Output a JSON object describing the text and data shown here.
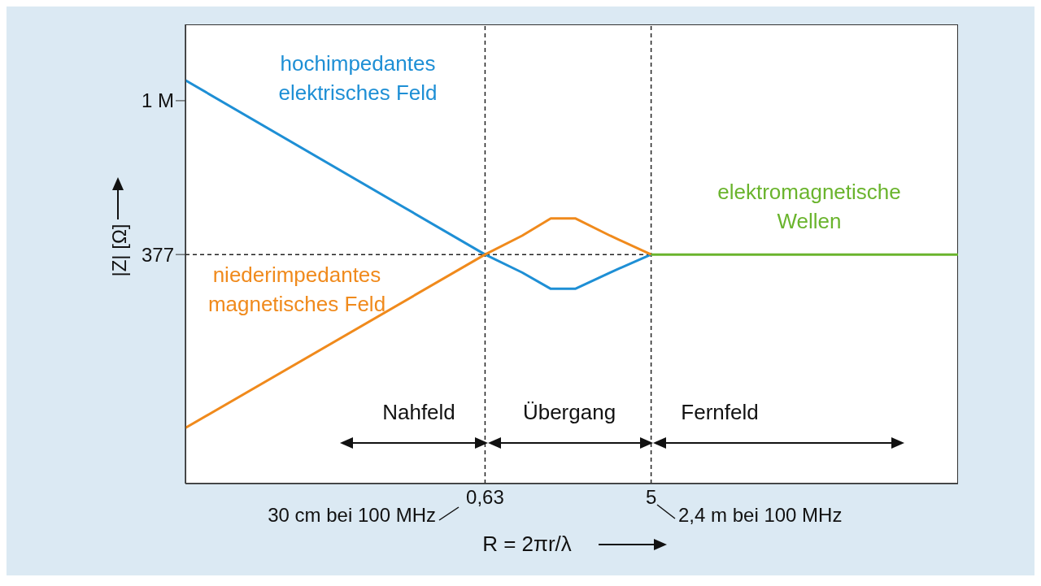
{
  "chart_data": {
    "type": "line",
    "xlabel": "R = 2πr/λ",
    "ylabel": "|Z| [Ω]",
    "log": "xy",
    "xlim": [
      0.015,
      230
    ],
    "ylim": [
      0.003,
      50000000
    ],
    "xticks": [
      {
        "value": 0.63,
        "label": "0,63"
      },
      5
    ],
    "yticks": [
      377,
      {
        "value": 1000000,
        "label": "1 M"
      }
    ],
    "marker": "none",
    "line_style": "solid",
    "series": [
      {
        "name": "hochimpedantes elektrisches Feld",
        "color": "#1e8fd5",
        "x": [
          0.015,
          0.63,
          1.0,
          1.43,
          1.94,
          3.0,
          5
        ],
        "values": [
          2850000,
          377,
          150,
          65,
          65,
          150,
          377
        ]
      },
      {
        "name": "niederimpedantes magnetisches Feld",
        "color": "#f08a1c",
        "x": [
          0.015,
          0.63,
          1.0,
          1.43,
          1.94,
          3.0,
          5
        ],
        "values": [
          0.052,
          377,
          990,
          2400,
          2400,
          990,
          377
        ]
      },
      {
        "name": "elektromagnetische Wellen",
        "color": "#6ab42d",
        "x": [
          5,
          230
        ],
        "values": [
          377,
          377
        ]
      }
    ],
    "ref_lines": [
      {
        "axis": "x",
        "value": 0.63,
        "color": "#222222",
        "line_style": "dashed"
      },
      {
        "axis": "x",
        "value": 5,
        "color": "#222222",
        "line_style": "dashed"
      },
      {
        "axis": "y",
        "value": 377,
        "color": "#222222",
        "line_style": "dashed"
      }
    ],
    "annotations": [
      "Nahfeld",
      "Übergang",
      "Fernfeld",
      "30 cm bei 100 MHz",
      "2,4 m bei 100 MHz"
    ]
  }
}
